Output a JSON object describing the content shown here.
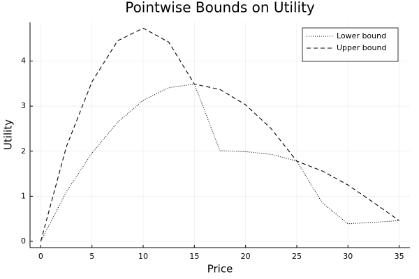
{
  "chart_data": {
    "type": "line",
    "title": "Pointwise Bounds on Utility",
    "x_label": "Price",
    "y_label": "Utility",
    "x": [
      0,
      2.5,
      5,
      7.5,
      10,
      12.5,
      15,
      17.5,
      20,
      22.5,
      25,
      27.5,
      30,
      32.5,
      35
    ],
    "series": [
      {
        "name": "Lower bound",
        "color": "#000000",
        "dash": "dotted",
        "values": [
          0,
          1.1,
          1.96,
          2.64,
          3.13,
          3.41,
          3.49,
          2.01,
          1.99,
          1.93,
          1.78,
          0.85,
          0.39,
          0.42,
          0.46
        ]
      },
      {
        "name": "Upper bound",
        "color": "#000000",
        "dash": "dashed",
        "values": [
          0,
          2.1,
          3.54,
          4.45,
          4.73,
          4.42,
          3.49,
          3.37,
          3.03,
          2.5,
          1.78,
          1.56,
          1.25,
          0.86,
          0.46
        ]
      }
    ],
    "xlim": [
      -1.05,
      36.05
    ],
    "xticks": [
      0,
      5,
      10,
      15,
      20,
      25,
      30,
      35
    ],
    "ylim": [
      -0.14,
      4.86
    ],
    "yticks": [
      0,
      1,
      2,
      3,
      4
    ],
    "grid": true,
    "legend": "top-right"
  }
}
